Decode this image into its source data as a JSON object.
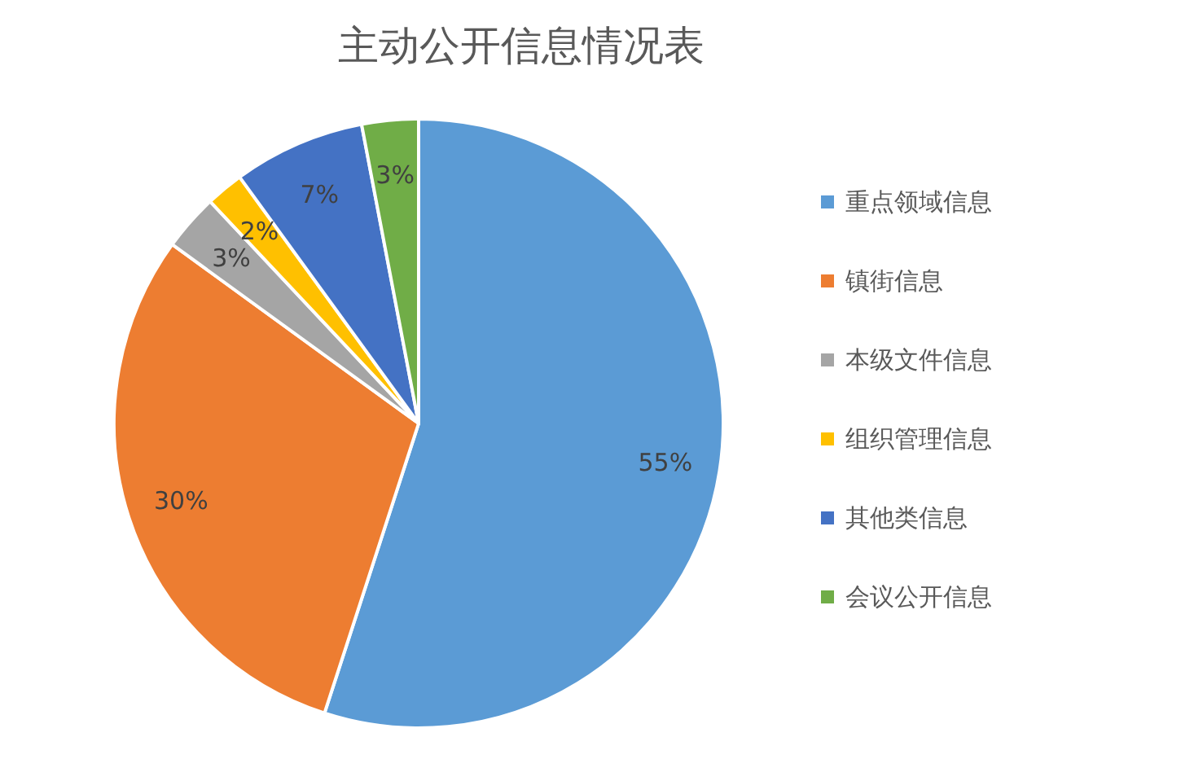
{
  "chart_data": {
    "type": "pie",
    "title": "主动公开信息情况表",
    "categories": [
      "重点领域信息",
      "镇街信息",
      "本级文件信息",
      "组织管理信息",
      "其他类信息",
      "会议公开信息"
    ],
    "values": [
      55,
      30,
      3,
      2,
      7,
      3
    ],
    "colors": [
      "#5b9bd5",
      "#ed7d31",
      "#a5a5a5",
      "#ffc000",
      "#4472c4",
      "#70ad47"
    ],
    "value_labels": [
      "55%",
      "30%",
      "3%",
      "2%",
      "7%",
      "3%"
    ],
    "legend": "right"
  }
}
